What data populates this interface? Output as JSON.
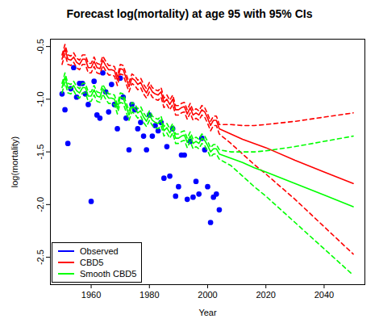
{
  "chart_data": {
    "type": "line",
    "title": "Forecast log(mortality) at age 95 with 95% CIs",
    "x_label": "Year",
    "y_label": "log(mortality)",
    "xlim": [
      1946,
      2054
    ],
    "xticks": [
      1960,
      1980,
      2000,
      2020,
      2040
    ],
    "ylim": [
      -2.76,
      -0.43
    ],
    "yticks": [
      {
        "value": -2.5,
        "label": "-2.5"
      },
      {
        "value": -2,
        "label": "-2.0"
      },
      {
        "value": -1.5,
        "label": "-1.5"
      },
      {
        "value": -1,
        "label": "-1.0"
      },
      {
        "value": -0.5,
        "label": "-0.5"
      }
    ],
    "grid": false,
    "legend": "bottomleft",
    "series": [
      {
        "name": "Observed",
        "color": "#0000ff",
        "type": "scatter",
        "marker": "circle",
        "x": [
          1950,
          1951,
          1952,
          1953,
          1954,
          1955,
          1956,
          1957,
          1958,
          1959,
          1960,
          1961,
          1962,
          1963,
          1964,
          1965,
          1966,
          1967,
          1968,
          1969,
          1970,
          1971,
          1972,
          1973,
          1974,
          1975,
          1976,
          1977,
          1978,
          1979,
          1980,
          1981,
          1982,
          1983,
          1984,
          1985,
          1986,
          1987,
          1988,
          1989,
          1990,
          1991,
          1992,
          1993,
          1994,
          1995,
          1996,
          1997,
          1998,
          1999,
          2000,
          2001,
          2002,
          2003,
          2004
        ],
        "values": [
          -0.95,
          -1.1,
          -1.42,
          -0.9,
          -0.7,
          -0.98,
          -0.85,
          -0.85,
          -0.95,
          -1.05,
          -1.97,
          -0.83,
          -1.15,
          -1.18,
          -0.75,
          -0.93,
          -1.12,
          -0.86,
          -1.05,
          -1.28,
          -0.8,
          -0.98,
          -1.18,
          -1.48,
          -1.05,
          -1.1,
          -1.28,
          -1.22,
          -1.35,
          -1.48,
          -1.15,
          -1.35,
          -1.25,
          -1.3,
          -1.22,
          -1.75,
          -1.45,
          -1.73,
          -1.28,
          -1.92,
          -1.83,
          -1.53,
          -1.53,
          -1.95,
          -1.4,
          -1.93,
          -1.78,
          -1.9,
          -1.37,
          -1.48,
          -1.83,
          -2.17,
          -1.93,
          -1.9,
          -2.05
        ]
      },
      {
        "name": "CBD5",
        "color": "#ff0000",
        "line_style": "solid",
        "x": [
          1950,
          1951,
          1952,
          1953,
          1954,
          1955,
          1956,
          1957,
          1958,
          1959,
          1960,
          1961,
          1962,
          1963,
          1964,
          1965,
          1966,
          1967,
          1968,
          1969,
          1970,
          1971,
          1972,
          1973,
          1974,
          1975,
          1976,
          1977,
          1978,
          1979,
          1980,
          1981,
          1982,
          1983,
          1984,
          1985,
          1986,
          1987,
          1988,
          1989,
          1990,
          1991,
          1992,
          1993,
          1994,
          1995,
          1996,
          1997,
          1998,
          1999,
          2000,
          2001,
          2002,
          2003,
          2004,
          2008,
          2012,
          2016,
          2020,
          2030,
          2040,
          2050
        ],
        "values": [
          -0.62,
          -0.52,
          -0.62,
          -0.63,
          -0.6,
          -0.65,
          -0.67,
          -0.62,
          -0.62,
          -0.7,
          -0.7,
          -0.64,
          -0.7,
          -0.71,
          -0.63,
          -0.68,
          -0.72,
          -0.72,
          -0.73,
          -0.82,
          -0.71,
          -0.72,
          -0.8,
          -0.88,
          -0.8,
          -0.82,
          -0.86,
          -0.84,
          -0.9,
          -0.94,
          -0.88,
          -0.93,
          -0.95,
          -0.96,
          -0.93,
          -1.03,
          -1.0,
          -1.05,
          -1.0,
          -1.1,
          -1.1,
          -1.08,
          -1.07,
          -1.14,
          -1.08,
          -1.15,
          -1.13,
          -1.15,
          -1.1,
          -1.12,
          -1.18,
          -1.25,
          -1.2,
          -1.2,
          -1.28,
          -1.33,
          -1.38,
          -1.42,
          -1.46,
          -1.58,
          -1.69,
          -1.8
        ]
      },
      {
        "color": "#ff0000",
        "line_style": "dashed",
        "x": [
          1950,
          1951,
          1952,
          1953,
          1954,
          1955,
          1956,
          1957,
          1958,
          1959,
          1960,
          1961,
          1962,
          1963,
          1964,
          1965,
          1966,
          1967,
          1968,
          1969,
          1970,
          1971,
          1972,
          1973,
          1974,
          1975,
          1976,
          1977,
          1978,
          1979,
          1980,
          1981,
          1982,
          1983,
          1984,
          1985,
          1986,
          1987,
          1988,
          1989,
          1990,
          1991,
          1992,
          1993,
          1994,
          1995,
          1996,
          1997,
          1998,
          1999,
          2000,
          2001,
          2002,
          2003,
          2004,
          2008,
          2012,
          2016,
          2020,
          2030,
          2040,
          2050
        ],
        "values": [
          -0.58,
          -0.48,
          -0.58,
          -0.59,
          -0.56,
          -0.61,
          -0.63,
          -0.58,
          -0.58,
          -0.66,
          -0.66,
          -0.6,
          -0.66,
          -0.67,
          -0.59,
          -0.64,
          -0.68,
          -0.68,
          -0.69,
          -0.78,
          -0.67,
          -0.68,
          -0.76,
          -0.84,
          -0.76,
          -0.78,
          -0.82,
          -0.8,
          -0.86,
          -0.9,
          -0.84,
          -0.89,
          -0.91,
          -0.92,
          -0.89,
          -0.99,
          -0.96,
          -1.01,
          -0.96,
          -1.06,
          -1.06,
          -1.04,
          -1.03,
          -1.1,
          -1.04,
          -1.11,
          -1.09,
          -1.11,
          -1.06,
          -1.08,
          -1.14,
          -1.21,
          -1.16,
          -1.16,
          -1.24,
          -1.24,
          -1.25,
          -1.25,
          -1.24,
          -1.21,
          -1.17,
          -1.13
        ]
      },
      {
        "color": "#ff0000",
        "line_style": "dashed",
        "x": [
          1950,
          1951,
          1952,
          1953,
          1954,
          1955,
          1956,
          1957,
          1958,
          1959,
          1960,
          1961,
          1962,
          1963,
          1964,
          1965,
          1966,
          1967,
          1968,
          1969,
          1970,
          1971,
          1972,
          1973,
          1974,
          1975,
          1976,
          1977,
          1978,
          1979,
          1980,
          1981,
          1982,
          1983,
          1984,
          1985,
          1986,
          1987,
          1988,
          1989,
          1990,
          1991,
          1992,
          1993,
          1994,
          1995,
          1996,
          1997,
          1998,
          1999,
          2000,
          2001,
          2002,
          2003,
          2004,
          2008,
          2012,
          2016,
          2020,
          2030,
          2040,
          2050
        ],
        "values": [
          -0.67,
          -0.57,
          -0.67,
          -0.68,
          -0.65,
          -0.7,
          -0.72,
          -0.67,
          -0.67,
          -0.75,
          -0.75,
          -0.69,
          -0.75,
          -0.76,
          -0.68,
          -0.73,
          -0.77,
          -0.77,
          -0.78,
          -0.87,
          -0.76,
          -0.77,
          -0.85,
          -0.93,
          -0.85,
          -0.87,
          -0.91,
          -0.89,
          -0.95,
          -0.99,
          -0.93,
          -0.98,
          -1.0,
          -1.01,
          -0.98,
          -1.08,
          -1.05,
          -1.1,
          -1.05,
          -1.15,
          -1.15,
          -1.13,
          -1.12,
          -1.19,
          -1.13,
          -1.2,
          -1.18,
          -1.2,
          -1.15,
          -1.17,
          -1.23,
          -1.3,
          -1.25,
          -1.25,
          -1.33,
          -1.42,
          -1.52,
          -1.62,
          -1.71,
          -1.95,
          -2.21,
          -2.47
        ]
      },
      {
        "name": "Smooth CBD5",
        "color": "#00ff00",
        "line_style": "solid",
        "x": [
          1950,
          1951,
          1952,
          1953,
          1954,
          1955,
          1956,
          1957,
          1958,
          1959,
          1960,
          1961,
          1962,
          1963,
          1964,
          1965,
          1966,
          1967,
          1968,
          1969,
          1970,
          1971,
          1972,
          1973,
          1974,
          1975,
          1976,
          1977,
          1978,
          1979,
          1980,
          1981,
          1982,
          1983,
          1984,
          1985,
          1986,
          1987,
          1988,
          1989,
          1990,
          1991,
          1992,
          1993,
          1994,
          1995,
          1996,
          1997,
          1998,
          1999,
          2000,
          2001,
          2002,
          2003,
          2004,
          2008,
          2012,
          2016,
          2020,
          2030,
          2040,
          2050
        ],
        "values": [
          -0.89,
          -0.79,
          -0.89,
          -0.9,
          -0.87,
          -0.92,
          -0.94,
          -0.89,
          -0.89,
          -0.97,
          -0.97,
          -0.91,
          -0.97,
          -0.98,
          -0.9,
          -0.95,
          -0.99,
          -0.99,
          -1.0,
          -1.09,
          -0.98,
          -0.99,
          -1.07,
          -1.15,
          -1.07,
          -1.09,
          -1.13,
          -1.11,
          -1.17,
          -1.21,
          -1.15,
          -1.2,
          -1.22,
          -1.23,
          -1.2,
          -1.3,
          -1.27,
          -1.32,
          -1.27,
          -1.37,
          -1.37,
          -1.35,
          -1.34,
          -1.41,
          -1.35,
          -1.42,
          -1.4,
          -1.42,
          -1.37,
          -1.39,
          -1.44,
          -1.5,
          -1.47,
          -1.47,
          -1.52,
          -1.56,
          -1.6,
          -1.65,
          -1.69,
          -1.8,
          -1.91,
          -2.02
        ]
      },
      {
        "color": "#00ff00",
        "line_style": "dashed",
        "x": [
          1950,
          1951,
          1952,
          1953,
          1954,
          1955,
          1956,
          1957,
          1958,
          1959,
          1960,
          1961,
          1962,
          1963,
          1964,
          1965,
          1966,
          1967,
          1968,
          1969,
          1970,
          1971,
          1972,
          1973,
          1974,
          1975,
          1976,
          1977,
          1978,
          1979,
          1980,
          1981,
          1982,
          1983,
          1984,
          1985,
          1986,
          1987,
          1988,
          1989,
          1990,
          1991,
          1992,
          1993,
          1994,
          1995,
          1996,
          1997,
          1998,
          1999,
          2000,
          2001,
          2002,
          2003,
          2004,
          2008,
          2012,
          2016,
          2020,
          2030,
          2040,
          2050
        ],
        "values": [
          -0.85,
          -0.75,
          -0.85,
          -0.86,
          -0.83,
          -0.88,
          -0.9,
          -0.85,
          -0.85,
          -0.93,
          -0.93,
          -0.87,
          -0.93,
          -0.94,
          -0.86,
          -0.91,
          -0.95,
          -0.95,
          -0.96,
          -1.05,
          -0.94,
          -0.95,
          -1.03,
          -1.11,
          -1.03,
          -1.05,
          -1.09,
          -1.07,
          -1.13,
          -1.17,
          -1.11,
          -1.16,
          -1.18,
          -1.19,
          -1.16,
          -1.26,
          -1.23,
          -1.28,
          -1.23,
          -1.33,
          -1.33,
          -1.31,
          -1.3,
          -1.37,
          -1.31,
          -1.38,
          -1.36,
          -1.38,
          -1.33,
          -1.35,
          -1.4,
          -1.46,
          -1.43,
          -1.43,
          -1.48,
          -1.5,
          -1.5,
          -1.5,
          -1.49,
          -1.45,
          -1.4,
          -1.35
        ]
      },
      {
        "color": "#00ff00",
        "line_style": "dashed",
        "x": [
          1950,
          1951,
          1952,
          1953,
          1954,
          1955,
          1956,
          1957,
          1958,
          1959,
          1960,
          1961,
          1962,
          1963,
          1964,
          1965,
          1966,
          1967,
          1968,
          1969,
          1970,
          1971,
          1972,
          1973,
          1974,
          1975,
          1976,
          1977,
          1978,
          1979,
          1980,
          1981,
          1982,
          1983,
          1984,
          1985,
          1986,
          1987,
          1988,
          1989,
          1990,
          1991,
          1992,
          1993,
          1994,
          1995,
          1996,
          1997,
          1998,
          1999,
          2000,
          2001,
          2002,
          2003,
          2004,
          2008,
          2012,
          2016,
          2020,
          2030,
          2040,
          2050
        ],
        "values": [
          -0.94,
          -0.84,
          -0.94,
          -0.95,
          -0.92,
          -0.97,
          -0.99,
          -0.94,
          -0.94,
          -1.02,
          -1.02,
          -0.96,
          -1.02,
          -1.03,
          -0.95,
          -1.0,
          -1.04,
          -1.04,
          -1.05,
          -1.14,
          -1.03,
          -1.04,
          -1.12,
          -1.2,
          -1.12,
          -1.14,
          -1.18,
          -1.16,
          -1.22,
          -1.26,
          -1.2,
          -1.25,
          -1.27,
          -1.28,
          -1.25,
          -1.35,
          -1.32,
          -1.37,
          -1.32,
          -1.42,
          -1.42,
          -1.4,
          -1.39,
          -1.46,
          -1.4,
          -1.47,
          -1.45,
          -1.47,
          -1.42,
          -1.44,
          -1.49,
          -1.55,
          -1.52,
          -1.52,
          -1.57,
          -1.63,
          -1.73,
          -1.83,
          -1.92,
          -2.17,
          -2.42,
          -2.67
        ]
      }
    ]
  }
}
